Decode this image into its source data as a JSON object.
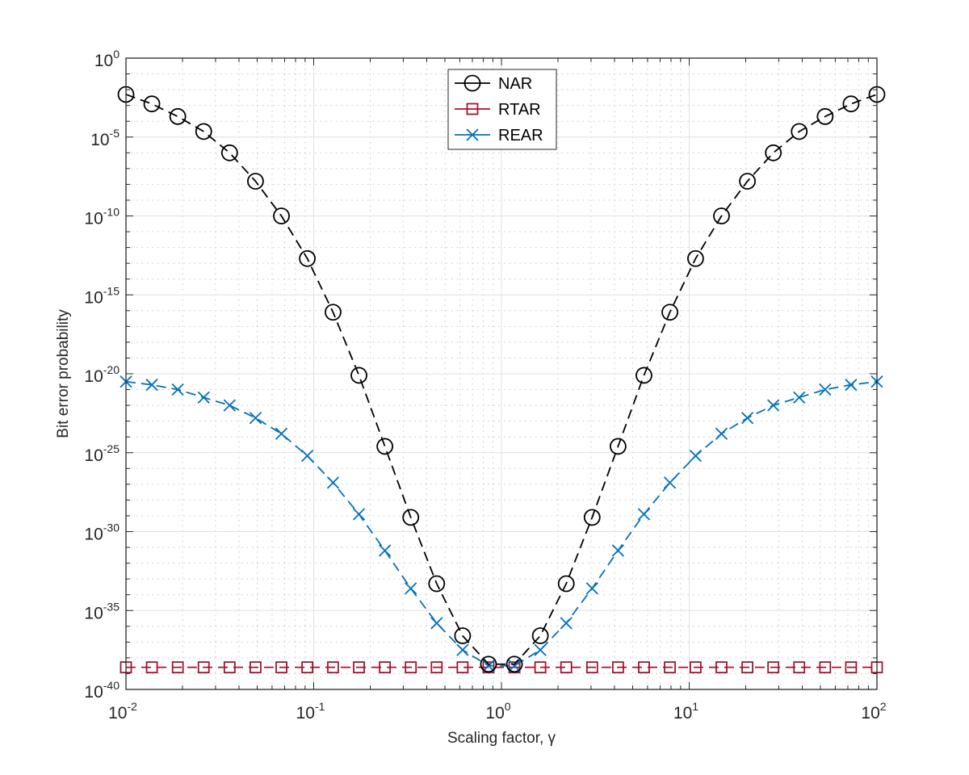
{
  "chart_data": {
    "type": "line",
    "title": "",
    "xlabel": "Scaling factor, γ",
    "ylabel": "Bit error probability",
    "xscale": "log",
    "yscale": "log",
    "xlim": [
      0.01,
      100
    ],
    "ylim": [
      1e-40,
      1
    ],
    "grid": true,
    "legend_position": "upper center",
    "x_tick_labels": [
      {
        "base": "10",
        "exp": "-2"
      },
      {
        "base": "10",
        "exp": "-1"
      },
      {
        "base": "10",
        "exp": "0"
      },
      {
        "base": "10",
        "exp": "1"
      },
      {
        "base": "10",
        "exp": "2"
      }
    ],
    "y_tick_labels": [
      {
        "base": "10",
        "exp": "0"
      },
      {
        "base": "10",
        "exp": "-5"
      },
      {
        "base": "10",
        "exp": "-10"
      },
      {
        "base": "10",
        "exp": "-15"
      },
      {
        "base": "10",
        "exp": "-20"
      },
      {
        "base": "10",
        "exp": "-25"
      },
      {
        "base": "10",
        "exp": "-30"
      },
      {
        "base": "10",
        "exp": "-35"
      },
      {
        "base": "10",
        "exp": "-40"
      }
    ],
    "x_log10": [
      -2.0,
      -1.862,
      -1.724,
      -1.586,
      -1.448,
      -1.31,
      -1.172,
      -1.034,
      -0.897,
      -0.759,
      -0.621,
      -0.483,
      -0.345,
      -0.207,
      -0.069,
      0.069,
      0.207,
      0.345,
      0.483,
      0.621,
      0.759,
      0.897,
      1.034,
      1.172,
      1.31,
      1.448,
      1.586,
      1.724,
      1.862,
      2.0
    ],
    "series": [
      {
        "name": "NAR",
        "color": "#000000",
        "marker": "circle",
        "linestyle": "dashed",
        "log10_values": [
          -2.3,
          -2.9,
          -3.7,
          -4.65,
          -6.0,
          -7.8,
          -10.0,
          -12.7,
          -16.1,
          -20.1,
          -24.6,
          -29.1,
          -33.3,
          -36.6,
          -38.4,
          -38.4,
          -36.6,
          -33.3,
          -29.1,
          -24.6,
          -20.1,
          -16.1,
          -12.7,
          -10.0,
          -7.8,
          -6.0,
          -4.65,
          -3.7,
          -2.9,
          -2.3
        ]
      },
      {
        "name": "RTAR",
        "color": "#A2142F",
        "marker": "square",
        "linestyle": "dashed",
        "log10_values": [
          -38.6,
          -38.6,
          -38.6,
          -38.6,
          -38.6,
          -38.6,
          -38.6,
          -38.6,
          -38.6,
          -38.6,
          -38.6,
          -38.6,
          -38.6,
          -38.6,
          -38.6,
          -38.6,
          -38.6,
          -38.6,
          -38.6,
          -38.6,
          -38.6,
          -38.6,
          -38.6,
          -38.6,
          -38.6,
          -38.6,
          -38.6,
          -38.6,
          -38.6,
          -38.6
        ]
      },
      {
        "name": "REAR",
        "color": "#0072BD",
        "marker": "x",
        "linestyle": "dashed",
        "log10_values": [
          -20.5,
          -20.7,
          -21.0,
          -21.5,
          -22.0,
          -22.8,
          -23.8,
          -25.2,
          -26.9,
          -28.9,
          -31.2,
          -33.6,
          -35.8,
          -37.5,
          -38.5,
          -38.5,
          -37.5,
          -35.8,
          -33.6,
          -31.2,
          -28.9,
          -26.9,
          -25.2,
          -23.8,
          -22.8,
          -22.0,
          -21.5,
          -21.0,
          -20.7,
          -20.5
        ]
      }
    ]
  }
}
